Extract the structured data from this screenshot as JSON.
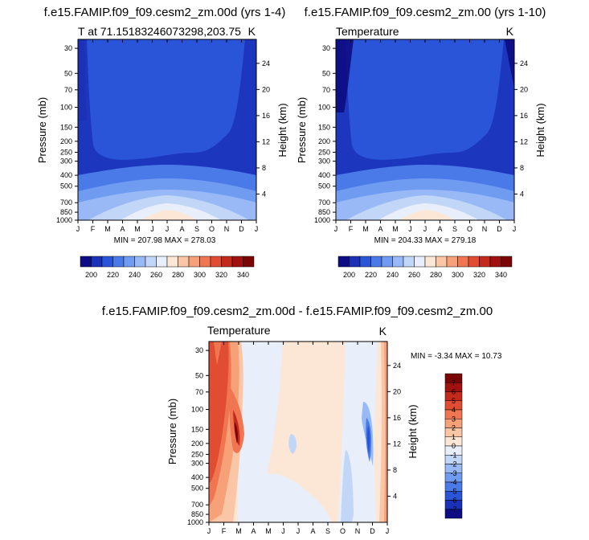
{
  "chart_data": [
    {
      "type": "heatmap",
      "id": "p1",
      "title": "f.e15.FAMIP.f09_f09.cesm2_zm.00d (yrs 1-4)",
      "subtitle_left": "T at 71.15183246073298,203.75",
      "subtitle_right": "K",
      "ylabel": "Pressure (mb)",
      "ylabel_right": "Height (km)",
      "x_ticks": [
        "J",
        "F",
        "M",
        "A",
        "M",
        "J",
        "J",
        "A",
        "S",
        "O",
        "N",
        "D",
        "J"
      ],
      "p_ticks": [
        "30",
        "50",
        "70",
        "100",
        "150",
        "200",
        "250",
        "300",
        "400",
        "500",
        "700",
        "850",
        "1000"
      ],
      "p_values": [
        30,
        50,
        70,
        100,
        150,
        200,
        250,
        300,
        400,
        500,
        700,
        850,
        1000
      ],
      "h_ticks": [
        "24",
        "20",
        "16",
        "12",
        "8",
        "4"
      ],
      "h_values": [
        24,
        20,
        16,
        12,
        8,
        4
      ],
      "min_max": "MIN = 207.98 MAX = 278.03",
      "colorbar_labels": [
        "200",
        "220",
        "240",
        "260",
        "280",
        "300",
        "320",
        "340"
      ],
      "colorbar_colors": [
        "#0d0c82",
        "#1a31b8",
        "#2a55d9",
        "#4a7ae8",
        "#6f9bf1",
        "#98b9f5",
        "#c2d6f7",
        "#e8eefa",
        "#fce7d6",
        "#fbc6a6",
        "#f7a178",
        "#ef7650",
        "#e04d33",
        "#c42a1c",
        "#a0110f",
        "#7a0505"
      ]
    },
    {
      "type": "heatmap",
      "id": "p2",
      "title": "f.e15.FAMIP.f09_f09.cesm2_zm.00 (yrs 1-10)",
      "subtitle_left": "Temperature",
      "subtitle_right": "K",
      "ylabel": "Pressure (mb)",
      "ylabel_right": "Height (km)",
      "x_ticks": [
        "J",
        "F",
        "M",
        "A",
        "M",
        "J",
        "J",
        "A",
        "S",
        "O",
        "N",
        "D",
        "J"
      ],
      "p_ticks": [
        "30",
        "50",
        "70",
        "100",
        "150",
        "200",
        "250",
        "300",
        "400",
        "500",
        "700",
        "850",
        "1000"
      ],
      "p_values": [
        30,
        50,
        70,
        100,
        150,
        200,
        250,
        300,
        400,
        500,
        700,
        850,
        1000
      ],
      "h_ticks": [
        "24",
        "20",
        "16",
        "12",
        "8",
        "4"
      ],
      "h_values": [
        24,
        20,
        16,
        12,
        8,
        4
      ],
      "min_max": "MIN = 204.33 MAX = 279.18",
      "colorbar_labels": [
        "200",
        "220",
        "240",
        "260",
        "280",
        "300",
        "320",
        "340"
      ],
      "colorbar_colors": [
        "#0d0c82",
        "#1a31b8",
        "#2a55d9",
        "#4a7ae8",
        "#6f9bf1",
        "#98b9f5",
        "#c2d6f7",
        "#e8eefa",
        "#fce7d6",
        "#fbc6a6",
        "#f7a178",
        "#ef7650",
        "#e04d33",
        "#c42a1c",
        "#a0110f",
        "#7a0505"
      ]
    },
    {
      "type": "heatmap",
      "id": "p3",
      "title": "f.e15.FAMIP.f09_f09.cesm2_zm.00d - f.e15.FAMIP.f09_f09.cesm2_zm.00",
      "subtitle_left": "Temperature",
      "subtitle_right": "K",
      "ylabel": "Pressure (mb)",
      "ylabel_right": "Height (km)",
      "x_ticks": [
        "J",
        "F",
        "M",
        "A",
        "M",
        "J",
        "J",
        "A",
        "S",
        "O",
        "N",
        "D",
        "J"
      ],
      "p_ticks": [
        "30",
        "50",
        "70",
        "100",
        "150",
        "200",
        "250",
        "300",
        "400",
        "500",
        "700",
        "850",
        "1000"
      ],
      "p_values": [
        30,
        50,
        70,
        100,
        150,
        200,
        250,
        300,
        400,
        500,
        700,
        850,
        1000
      ],
      "h_ticks": [
        "24",
        "20",
        "16",
        "12",
        "8",
        "4"
      ],
      "h_values": [
        24,
        20,
        16,
        12,
        8,
        4
      ],
      "min_max": "MIN = -3.34 MAX = 10.73",
      "colorbar_labels": [
        "7",
        "6",
        "5",
        "4",
        "3",
        "2",
        "1",
        "0",
        "-1",
        "-2",
        "-3",
        "-4",
        "-5",
        "-6",
        "-7"
      ],
      "colorbar_colors": [
        "#7a0505",
        "#a0110f",
        "#c42a1c",
        "#e04d33",
        "#ef7650",
        "#f7a178",
        "#fbc6a6",
        "#fce7d6",
        "#e8eefa",
        "#c2d6f7",
        "#98b9f5",
        "#6f9bf1",
        "#4a7ae8",
        "#2a55d9",
        "#1a31b8",
        "#0d0c82"
      ]
    }
  ]
}
